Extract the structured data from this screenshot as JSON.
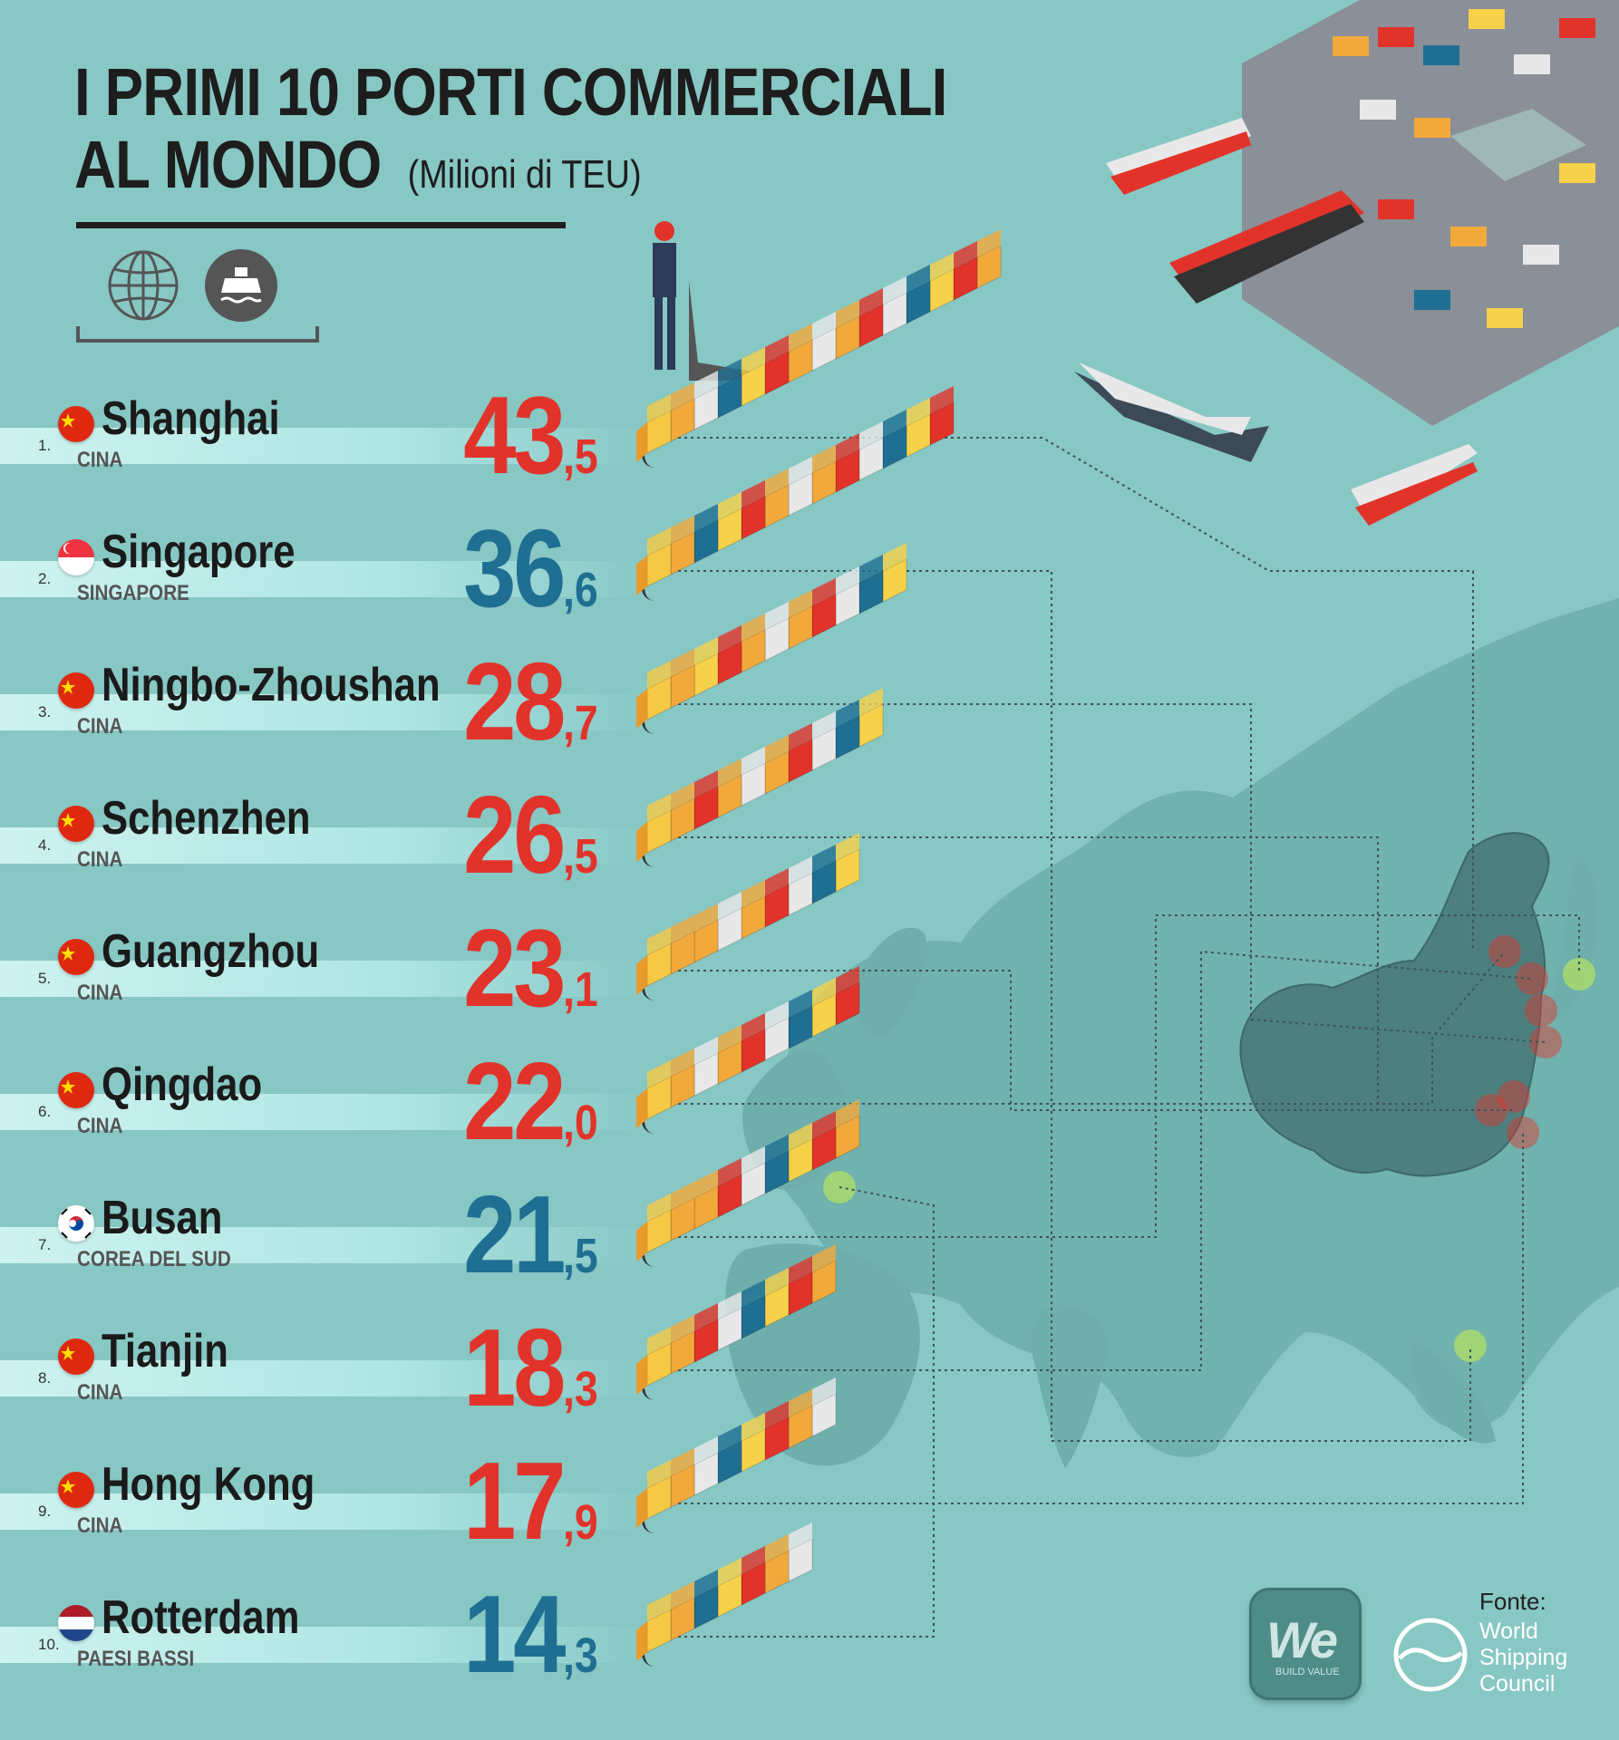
{
  "title": {
    "line1": "I PRIMI 10 PORTI COMMERCIALI",
    "line2": "AL MONDO",
    "unit": "(Milioni di TEU)"
  },
  "icons": [
    "globe-icon",
    "ship-icon"
  ],
  "colors": {
    "red": "#e2332a",
    "blue": "#1f6f93",
    "background": "#87c7c4"
  },
  "chart_data": {
    "type": "bar",
    "title": "I PRIMI 10 PORTI COMMERCIALI AL MONDO",
    "unit": "(Milioni di TEU)",
    "categories": [
      "Shanghai",
      "Singapore",
      "Ningbo-Zhoushan",
      "Schenzhen",
      "Guangzhou",
      "Qingdao",
      "Busan",
      "Tianjin",
      "Hong Kong",
      "Rotterdam"
    ],
    "values": [
      43.5,
      36.6,
      28.7,
      26.5,
      23.1,
      22.0,
      21.5,
      18.3,
      17.9,
      14.3
    ],
    "rows": [
      {
        "rank": "1.",
        "city": "Shanghai",
        "country": "CINA",
        "flag": "cn",
        "int": "43",
        "dec": ",5",
        "value": 43.5,
        "color": "red"
      },
      {
        "rank": "2.",
        "city": "Singapore",
        "country": "SINGAPORE",
        "flag": "sg",
        "int": "36",
        "dec": ",6",
        "value": 36.6,
        "color": "blue"
      },
      {
        "rank": "3.",
        "city": "Ningbo-Zhoushan",
        "country": "CINA",
        "flag": "cn",
        "int": "28",
        "dec": ",7",
        "value": 28.7,
        "color": "red"
      },
      {
        "rank": "4.",
        "city": "Schenzhen",
        "country": "CINA",
        "flag": "cn",
        "int": "26",
        "dec": ",5",
        "value": 26.5,
        "color": "red"
      },
      {
        "rank": "5.",
        "city": "Guangzhou",
        "country": "CINA",
        "flag": "cn",
        "int": "23",
        "dec": ",1",
        "value": 23.1,
        "color": "red"
      },
      {
        "rank": "6.",
        "city": "Qingdao",
        "country": "CINA",
        "flag": "cn",
        "int": "22",
        "dec": ",0",
        "value": 22.0,
        "color": "red"
      },
      {
        "rank": "7.",
        "city": "Busan",
        "country": "COREA DEL SUD",
        "flag": "kr",
        "int": "21",
        "dec": ",5",
        "value": 21.5,
        "color": "blue"
      },
      {
        "rank": "8.",
        "city": "Tianjin",
        "country": "CINA",
        "flag": "cn",
        "int": "18",
        "dec": ",3",
        "value": 18.3,
        "color": "red"
      },
      {
        "rank": "9.",
        "city": "Hong Kong",
        "country": "CINA",
        "flag": "cn",
        "int": "17",
        "dec": ",9",
        "value": 17.9,
        "color": "red"
      },
      {
        "rank": "10.",
        "city": "Rotterdam",
        "country": "PAESI BASSI",
        "flag": "nl",
        "int": "14",
        "dec": ",3",
        "value": 14.3,
        "color": "blue"
      }
    ]
  },
  "logo": {
    "we": "We",
    "tagline": "BUILD VALUE"
  },
  "source": {
    "label": "Fonte:",
    "name_lines": [
      "World",
      "Shipping",
      "Council"
    ]
  }
}
